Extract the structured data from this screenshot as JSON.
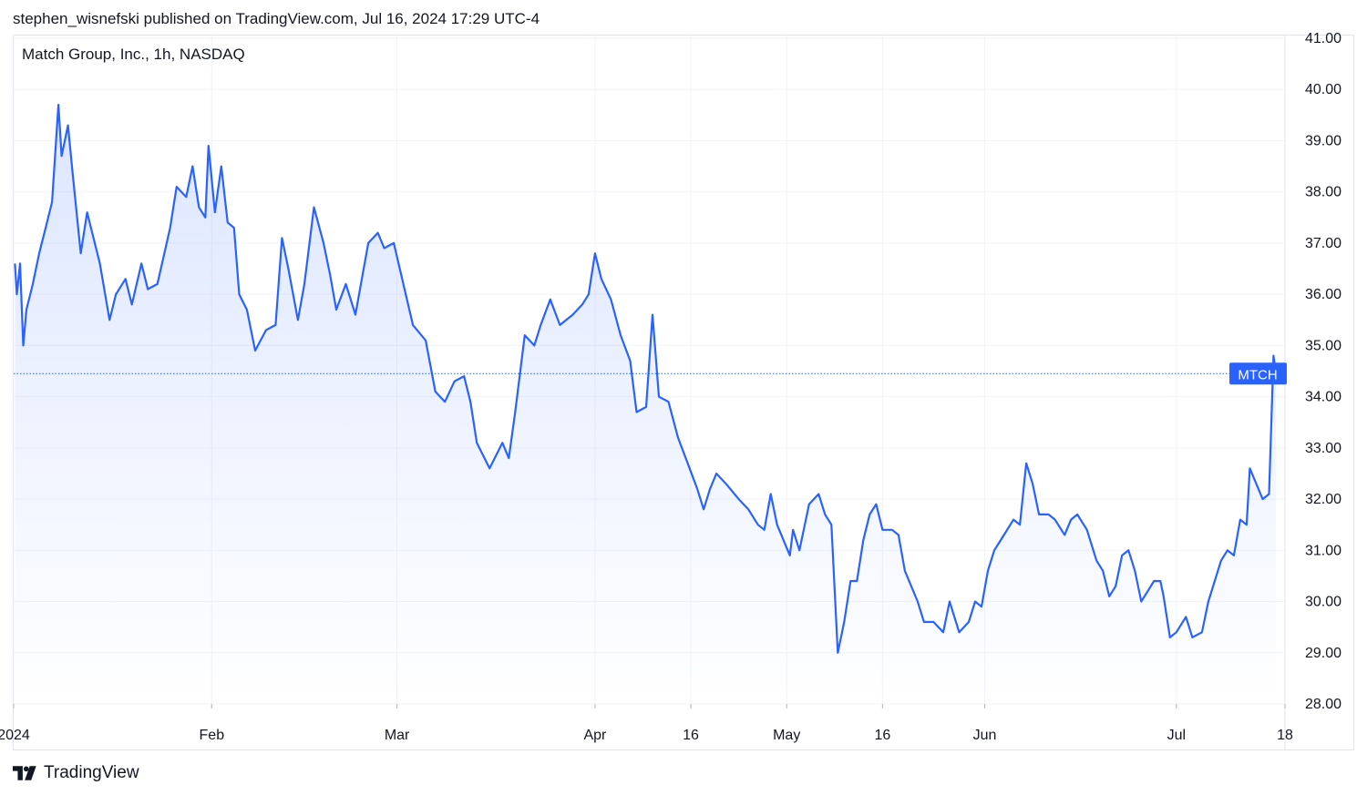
{
  "header": {
    "publisher_line": "stephen_wisnefski published on TradingView.com, Jul 16, 2024 17:29 UTC-4"
  },
  "legend": {
    "symbol_line": "Match Group, Inc., 1h, NASDAQ"
  },
  "price_label": {
    "text": "MTCH",
    "value": 34.45
  },
  "footer": {
    "brand": "TradingView",
    "logo_icon": "tradingview-logo-icon"
  },
  "colors": {
    "line": "#2962ff",
    "fill_top": "#2962ff",
    "grid": "#f0f3fa",
    "axis_text": "#131722",
    "badge": "#2962ff"
  },
  "chart_data": {
    "type": "area",
    "title": "Match Group, Inc., 1h, NASDAQ",
    "ylim": [
      28,
      41
    ],
    "y_ticks": [
      28,
      29,
      30,
      31,
      32,
      33,
      34,
      35,
      36,
      37,
      38,
      39,
      40,
      41
    ],
    "y_tick_labels": [
      "28.00",
      "29.00",
      "30.00",
      "31.00",
      "32.00",
      "33.00",
      "34.00",
      "35.00",
      "36.00",
      "37.00",
      "38.00",
      "39.00",
      "40.00",
      "41.00"
    ],
    "x_ticks": [
      {
        "label": "2024",
        "day": 0
      },
      {
        "label": "Feb",
        "day": 31
      },
      {
        "label": "Mar",
        "day": 60
      },
      {
        "label": "Apr",
        "day": 91
      },
      {
        "label": "16",
        "day": 106
      },
      {
        "label": "May",
        "day": 121
      },
      {
        "label": "16",
        "day": 136
      },
      {
        "label": "Jun",
        "day": 152
      },
      {
        "label": "Jul",
        "day": 182
      },
      {
        "label": "18",
        "day": 199
      }
    ],
    "x_unit": "days since Jan 1, 2024",
    "xlim": [
      0,
      199
    ],
    "grid": true,
    "series": [
      {
        "name": "MTCH",
        "points": [
          [
            0.2,
            36.6
          ],
          [
            0.5,
            36.0
          ],
          [
            1.0,
            36.6
          ],
          [
            1.5,
            35.0
          ],
          [
            2.0,
            35.7
          ],
          [
            3.0,
            36.2
          ],
          [
            4.0,
            36.8
          ],
          [
            5.0,
            37.3
          ],
          [
            6.0,
            37.8
          ],
          [
            7.0,
            39.7
          ],
          [
            7.5,
            38.7
          ],
          [
            8.5,
            39.3
          ],
          [
            9.2,
            38.4
          ],
          [
            10.5,
            36.8
          ],
          [
            11.5,
            37.6
          ],
          [
            13.5,
            36.6
          ],
          [
            15.0,
            35.5
          ],
          [
            16.0,
            36.0
          ],
          [
            17.5,
            36.3
          ],
          [
            18.5,
            35.8
          ],
          [
            20.0,
            36.6
          ],
          [
            21.0,
            36.1
          ],
          [
            22.5,
            36.2
          ],
          [
            24.5,
            37.3
          ],
          [
            25.5,
            38.1
          ],
          [
            27.0,
            37.9
          ],
          [
            28.0,
            38.5
          ],
          [
            29.0,
            37.7
          ],
          [
            30.0,
            37.5
          ],
          [
            30.5,
            38.9
          ],
          [
            31.5,
            37.6
          ],
          [
            32.5,
            38.5
          ],
          [
            33.5,
            37.4
          ],
          [
            34.5,
            37.3
          ],
          [
            35.3,
            36.0
          ],
          [
            36.5,
            35.7
          ],
          [
            37.8,
            34.9
          ],
          [
            39.5,
            35.3
          ],
          [
            41.0,
            35.4
          ],
          [
            42.0,
            37.1
          ],
          [
            43.0,
            36.5
          ],
          [
            44.5,
            35.5
          ],
          [
            45.5,
            36.2
          ],
          [
            47.0,
            37.7
          ],
          [
            48.5,
            37.0
          ],
          [
            49.5,
            36.4
          ],
          [
            50.5,
            35.7
          ],
          [
            52.0,
            36.2
          ],
          [
            53.5,
            35.6
          ],
          [
            55.5,
            37.0
          ],
          [
            57.0,
            37.2
          ],
          [
            58.0,
            36.9
          ],
          [
            59.5,
            37.0
          ],
          [
            61.0,
            36.2
          ],
          [
            62.5,
            35.4
          ],
          [
            64.5,
            35.1
          ],
          [
            66.0,
            34.1
          ],
          [
            67.5,
            33.9
          ],
          [
            69.0,
            34.3
          ],
          [
            70.5,
            34.4
          ],
          [
            71.5,
            33.9
          ],
          [
            72.5,
            33.1
          ],
          [
            74.5,
            32.6
          ],
          [
            76.5,
            33.1
          ],
          [
            77.5,
            32.8
          ],
          [
            78.5,
            33.7
          ],
          [
            80.0,
            35.2
          ],
          [
            81.5,
            35.0
          ],
          [
            82.5,
            35.4
          ],
          [
            84.0,
            35.9
          ],
          [
            85.5,
            35.4
          ],
          [
            87.5,
            35.6
          ],
          [
            89.0,
            35.8
          ],
          [
            90.0,
            36.0
          ],
          [
            91.0,
            36.8
          ],
          [
            92.0,
            36.3
          ],
          [
            93.5,
            35.9
          ],
          [
            95.0,
            35.2
          ],
          [
            96.5,
            34.7
          ],
          [
            97.5,
            33.7
          ],
          [
            99.0,
            33.8
          ],
          [
            100.0,
            35.6
          ],
          [
            101.0,
            34.0
          ],
          [
            102.5,
            33.9
          ],
          [
            104.0,
            33.2
          ],
          [
            105.5,
            32.7
          ],
          [
            107.0,
            32.2
          ],
          [
            108.0,
            31.8
          ],
          [
            109.0,
            32.2
          ],
          [
            110.0,
            32.5
          ],
          [
            111.5,
            32.3
          ],
          [
            113.5,
            32.0
          ],
          [
            115.0,
            31.8
          ],
          [
            116.5,
            31.5
          ],
          [
            117.5,
            31.4
          ],
          [
            118.5,
            32.1
          ],
          [
            119.5,
            31.5
          ],
          [
            120.5,
            31.2
          ],
          [
            121.5,
            30.9
          ],
          [
            122.0,
            31.4
          ],
          [
            123.0,
            31.0
          ],
          [
            124.5,
            31.9
          ],
          [
            126.0,
            32.1
          ],
          [
            127.0,
            31.7
          ],
          [
            128.0,
            31.5
          ],
          [
            129.0,
            29.0
          ],
          [
            130.0,
            29.6
          ],
          [
            131.0,
            30.4
          ],
          [
            132.0,
            30.4
          ],
          [
            133.0,
            31.2
          ],
          [
            134.0,
            31.7
          ],
          [
            135.0,
            31.9
          ],
          [
            136.0,
            31.4
          ],
          [
            137.5,
            31.4
          ],
          [
            138.5,
            31.3
          ],
          [
            139.5,
            30.6
          ],
          [
            140.5,
            30.3
          ],
          [
            141.5,
            30.0
          ],
          [
            142.5,
            29.6
          ],
          [
            144.0,
            29.6
          ],
          [
            145.5,
            29.4
          ],
          [
            146.5,
            30.0
          ],
          [
            148.0,
            29.4
          ],
          [
            149.5,
            29.6
          ],
          [
            150.5,
            30.0
          ],
          [
            151.5,
            29.9
          ],
          [
            152.5,
            30.6
          ],
          [
            153.5,
            31.0
          ],
          [
            154.5,
            31.2
          ],
          [
            156.5,
            31.6
          ],
          [
            157.5,
            31.5
          ],
          [
            158.5,
            32.7
          ],
          [
            159.5,
            32.3
          ],
          [
            160.5,
            31.7
          ],
          [
            162.0,
            31.7
          ],
          [
            163.0,
            31.6
          ],
          [
            164.5,
            31.3
          ],
          [
            165.5,
            31.6
          ],
          [
            166.5,
            31.7
          ],
          [
            168.0,
            31.4
          ],
          [
            169.5,
            30.8
          ],
          [
            170.5,
            30.6
          ],
          [
            171.5,
            30.1
          ],
          [
            172.5,
            30.3
          ],
          [
            173.5,
            30.9
          ],
          [
            174.5,
            31.0
          ],
          [
            175.5,
            30.6
          ],
          [
            176.5,
            30.0
          ],
          [
            177.5,
            30.2
          ],
          [
            178.5,
            30.4
          ],
          [
            179.5,
            30.4
          ],
          [
            180.0,
            30.1
          ],
          [
            181.0,
            29.3
          ],
          [
            182.0,
            29.4
          ],
          [
            183.5,
            29.7
          ],
          [
            184.5,
            29.3
          ],
          [
            186.0,
            29.4
          ],
          [
            187.0,
            30.0
          ],
          [
            188.0,
            30.4
          ],
          [
            189.0,
            30.8
          ],
          [
            190.0,
            31.0
          ],
          [
            191.0,
            30.9
          ],
          [
            192.0,
            31.6
          ],
          [
            193.0,
            31.5
          ],
          [
            193.5,
            32.6
          ],
          [
            194.5,
            32.3
          ],
          [
            195.5,
            32.0
          ],
          [
            196.5,
            32.1
          ],
          [
            197.2,
            34.8
          ],
          [
            197.6,
            34.45
          ]
        ]
      }
    ]
  }
}
